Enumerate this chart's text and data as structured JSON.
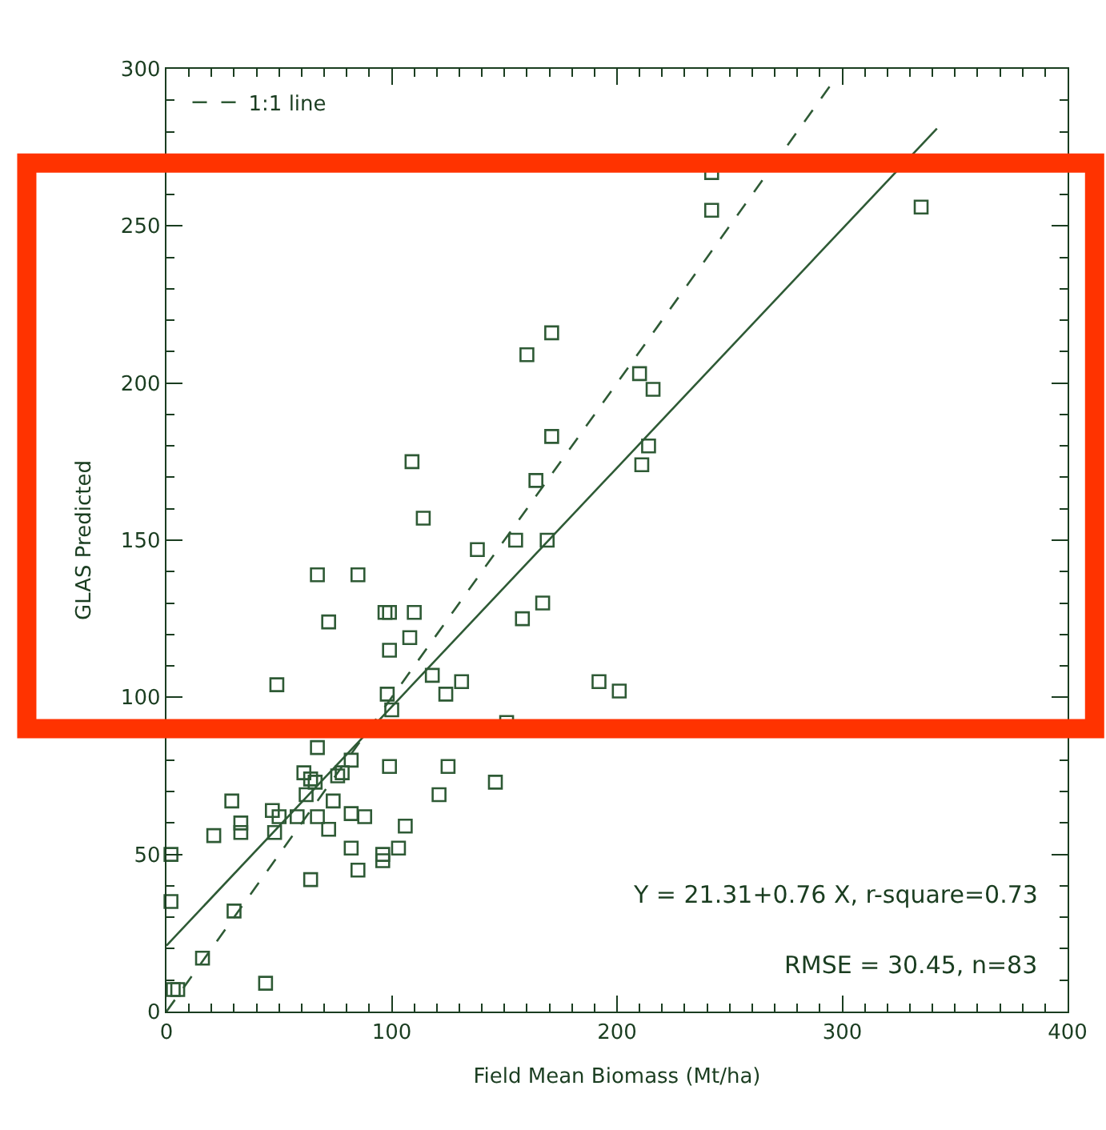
{
  "chart_data": {
    "type": "scatter",
    "xlabel": "Field Mean Biomass (Mt/ha)",
    "ylabel": "GLAS Predicted",
    "xlim": [
      0,
      400
    ],
    "xticks": [
      0,
      100,
      200,
      300,
      400
    ],
    "ylim": [
      0,
      300
    ],
    "yticks": [
      0,
      50,
      100,
      150,
      200,
      250,
      300
    ],
    "grid": false,
    "legend": "top left",
    "marker": "square",
    "annotations": [
      "Y = 21.31+0.76 X, r-square=0.73",
      "RMSE = 30.45, n=83"
    ],
    "series": [
      {
        "color": "#2e5a35",
        "x": [
          2,
          2,
          3,
          5,
          16,
          30,
          44,
          29,
          21,
          33,
          33,
          47,
          48,
          50,
          58,
          61,
          64,
          66,
          62,
          67,
          64,
          67,
          74,
          72,
          76,
          78,
          82,
          82,
          88,
          82,
          85,
          96,
          96,
          103,
          106,
          99,
          98,
          100,
          118,
          124,
          131,
          121,
          125,
          146,
          151,
          49,
          72,
          108,
          99,
          99,
          110,
          171,
          160,
          171,
          109,
          164,
          114,
          155,
          169,
          138,
          67,
          85,
          97,
          158,
          167,
          242,
          242,
          335,
          210,
          216,
          214,
          211,
          192,
          201
        ],
        "values": [
          50,
          35,
          7,
          7,
          17,
          32,
          9,
          67,
          56,
          60,
          57,
          64,
          57,
          62,
          62,
          76,
          74,
          73,
          69,
          62,
          42,
          84,
          67,
          58,
          75,
          76,
          80,
          63,
          62,
          52,
          45,
          48,
          50,
          52,
          59,
          78,
          101,
          96,
          107,
          101,
          105,
          69,
          78,
          73,
          92,
          104,
          124,
          119,
          115,
          127,
          127,
          216,
          209,
          183,
          175,
          169,
          157,
          150,
          150,
          147,
          139,
          139,
          127,
          125,
          130,
          267,
          255,
          256,
          203,
          198,
          180,
          174,
          105,
          102
        ]
      },
      {
        "type": "line",
        "color": "#2e5a35",
        "line_style": "solid",
        "marker": "none",
        "x": [
          0,
          342
        ],
        "values": [
          21,
          281
        ]
      },
      {
        "type": "line",
        "name": "1:1 line",
        "color": "#2e5a35",
        "line_style": "dashed",
        "marker": "none",
        "x": [
          0,
          295
        ],
        "values": [
          0,
          295
        ]
      }
    ]
  }
}
